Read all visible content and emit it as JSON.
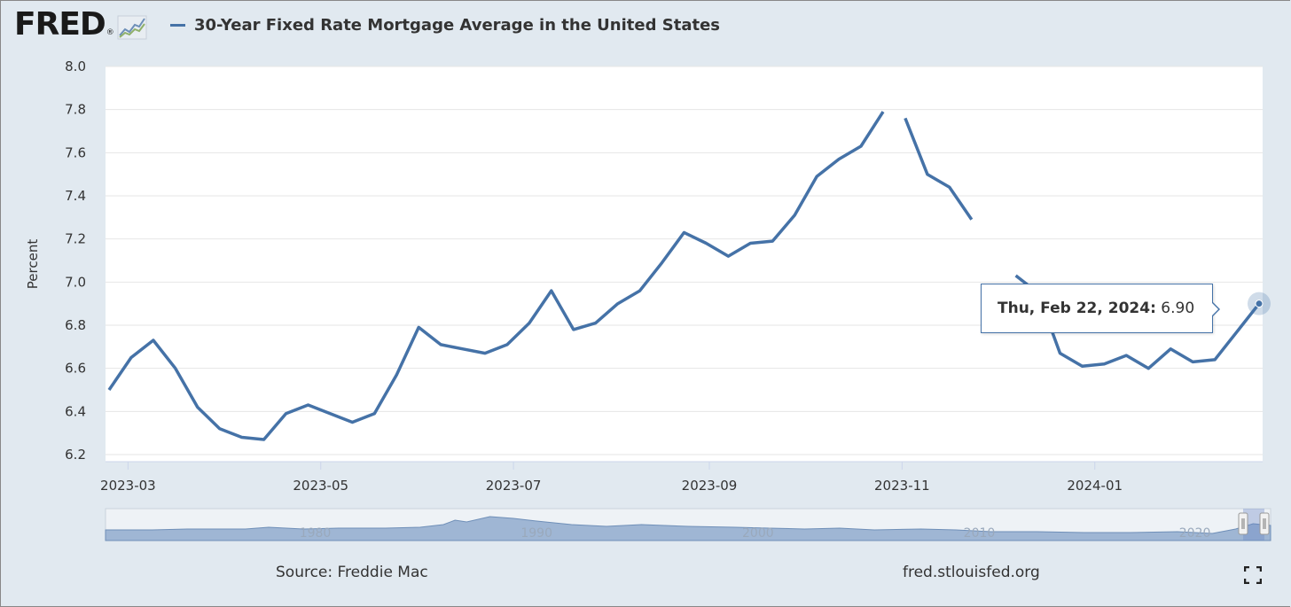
{
  "brand": {
    "logo_text": "FRED",
    "logo_mark": "®"
  },
  "legend": {
    "label": "30-Year Fixed Rate Mortgage Average in the United States",
    "color": "#4572a7"
  },
  "footer": {
    "source": "Source: Freddie Mac",
    "site": "fred.stlouisfed.org"
  },
  "tooltip": {
    "date": "Thu, Feb 22, 2024:",
    "value": "6.90"
  },
  "navigator": {
    "year_labels": [
      "1980",
      "1990",
      "2000",
      "2010",
      "2020"
    ]
  },
  "icons": {
    "fullscreen": "fullscreen-icon",
    "logo_graph": "trend-graph-icon"
  },
  "chart_data": {
    "type": "line",
    "ylabel": "Percent",
    "ylim": [
      6.2,
      8.0
    ],
    "y_ticks": [
      "6.2",
      "6.4",
      "6.6",
      "6.8",
      "7.0",
      "7.2",
      "7.4",
      "7.6",
      "7.8",
      "8.0"
    ],
    "x_ticks": [
      "2023-03",
      "2023-05",
      "2023-07",
      "2023-09",
      "2023-11",
      "2024-01"
    ],
    "grid": true,
    "series": [
      {
        "name": "30-Year Fixed Rate Mortgage Average in the United States",
        "color": "#4572a7",
        "x": [
          "2023-02-23",
          "2023-03-02",
          "2023-03-09",
          "2023-03-16",
          "2023-03-23",
          "2023-03-30",
          "2023-04-06",
          "2023-04-13",
          "2023-04-20",
          "2023-04-27",
          "2023-05-04",
          "2023-05-11",
          "2023-05-18",
          "2023-05-25",
          "2023-06-01",
          "2023-06-08",
          "2023-06-15",
          "2023-06-22",
          "2023-06-29",
          "2023-07-06",
          "2023-07-13",
          "2023-07-20",
          "2023-07-27",
          "2023-08-03",
          "2023-08-10",
          "2023-08-17",
          "2023-08-24",
          "2023-08-31",
          "2023-09-07",
          "2023-09-14",
          "2023-09-21",
          "2023-09-28",
          "2023-10-05",
          "2023-10-12",
          "2023-10-19",
          "2023-10-26",
          "2023-11-02",
          "2023-11-09",
          "2023-11-16",
          "2023-11-23",
          "2023-11-30",
          "2023-12-07",
          "2023-12-14",
          "2023-12-21",
          "2023-12-28",
          "2024-01-04",
          "2024-01-11",
          "2024-01-18",
          "2024-01-25",
          "2024-02-01",
          "2024-02-08",
          "2024-02-15",
          "2024-02-22"
        ],
        "values": [
          6.5,
          6.65,
          6.73,
          6.6,
          6.42,
          6.32,
          6.28,
          6.27,
          6.39,
          6.43,
          6.39,
          6.35,
          6.39,
          6.57,
          6.79,
          6.71,
          6.69,
          6.67,
          6.71,
          6.81,
          6.96,
          6.78,
          6.81,
          6.9,
          6.96,
          7.09,
          7.23,
          7.18,
          7.12,
          7.18,
          7.19,
          7.31,
          7.49,
          7.57,
          7.63,
          7.79,
          7.76,
          7.5,
          7.44,
          7.29,
          7.22,
          7.03,
          6.95,
          6.67,
          6.61,
          6.62,
          6.66,
          6.6,
          6.69,
          6.63,
          6.64,
          6.77,
          6.9
        ],
        "gaps_after": [
          "2023-10-26",
          "2023-11-23",
          "2023-11-30"
        ]
      }
    ],
    "highlighted_point": {
      "x": "2024-02-22",
      "value": 6.9
    }
  }
}
